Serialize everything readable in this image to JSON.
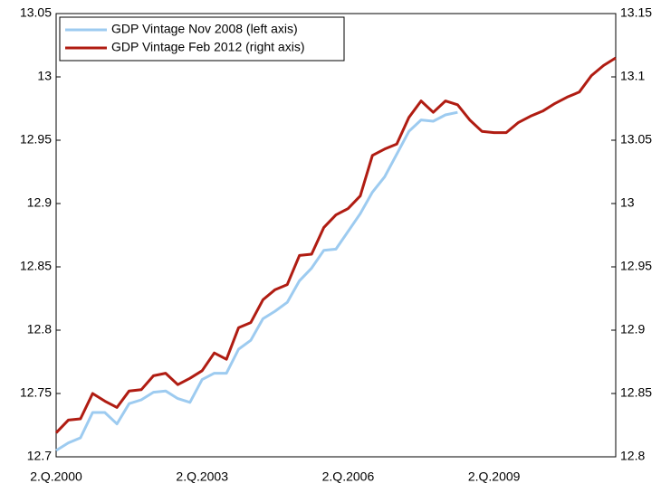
{
  "chart_data": {
    "type": "line",
    "categories": [
      "2.Q.2000",
      null,
      null,
      null,
      null,
      null,
      null,
      null,
      null,
      null,
      null,
      null,
      "2.Q.2003",
      null,
      null,
      null,
      null,
      null,
      null,
      null,
      null,
      null,
      null,
      null,
      "2.Q.2006",
      null,
      null,
      null,
      null,
      null,
      null,
      null,
      null,
      null,
      null,
      null,
      "2.Q.2009",
      null,
      null,
      null,
      null,
      null,
      null,
      null,
      null,
      null,
      null
    ],
    "series": [
      {
        "name": "GDP Vintage Nov 2008 (left axis)",
        "color": "#9dcbf0",
        "values": [
          12.705,
          12.711,
          12.715,
          12.735,
          12.735,
          12.726,
          12.742,
          12.745,
          12.751,
          12.752,
          12.746,
          12.743,
          12.761,
          12.766,
          12.766,
          12.785,
          12.792,
          12.809,
          12.815,
          12.822,
          12.839,
          12.849,
          12.863,
          12.864,
          12.878,
          12.892,
          12.909,
          12.921,
          12.939,
          12.957,
          12.966,
          12.965,
          12.97,
          12.972,
          null,
          null,
          null,
          null,
          null,
          null,
          null,
          null,
          null,
          null,
          null,
          null,
          null
        ]
      },
      {
        "name": "GDP Vintage Feb 2012 (right axis)",
        "color": "#b01c12",
        "axis": "y2",
        "values": [
          12.819,
          12.829,
          12.83,
          12.85,
          12.844,
          12.839,
          12.852,
          12.853,
          12.864,
          12.866,
          12.857,
          12.862,
          12.868,
          12.882,
          12.877,
          12.902,
          12.906,
          12.924,
          12.932,
          12.936,
          12.959,
          12.96,
          12.981,
          12.991,
          12.996,
          13.006,
          13.038,
          13.043,
          13.047,
          13.068,
          13.081,
          13.072,
          13.081,
          13.078,
          13.066,
          13.057,
          13.056,
          13.056,
          13.064,
          13.069,
          13.073,
          13.079,
          13.084,
          13.088,
          13.101,
          13.109,
          13.115
        ]
      }
    ],
    "ylim": [
      12.7,
      13.05
    ],
    "yticks": [
      12.7,
      12.75,
      12.8,
      12.85,
      12.9,
      12.95,
      13,
      13.05
    ],
    "y2lim": [
      12.8,
      13.15
    ],
    "y2ticks": [
      12.8,
      12.85,
      12.9,
      12.95,
      13,
      13.05,
      13.1,
      13.15
    ],
    "legend": "upper-left",
    "grid": false
  }
}
